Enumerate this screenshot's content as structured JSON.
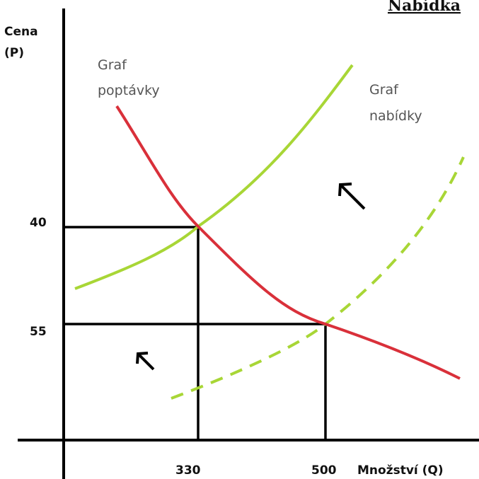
{
  "title": "Nabídka",
  "axes": {
    "y_label": [
      "Cena",
      "(P)"
    ],
    "x_label": "Množství (Q)"
  },
  "curves": {
    "demand": [
      "Graf",
      "poptávky"
    ],
    "supply": [
      "Graf",
      "nabídky"
    ]
  },
  "price_levels": [
    "40",
    "55"
  ],
  "quantity_levels": [
    "330",
    "500"
  ]
}
